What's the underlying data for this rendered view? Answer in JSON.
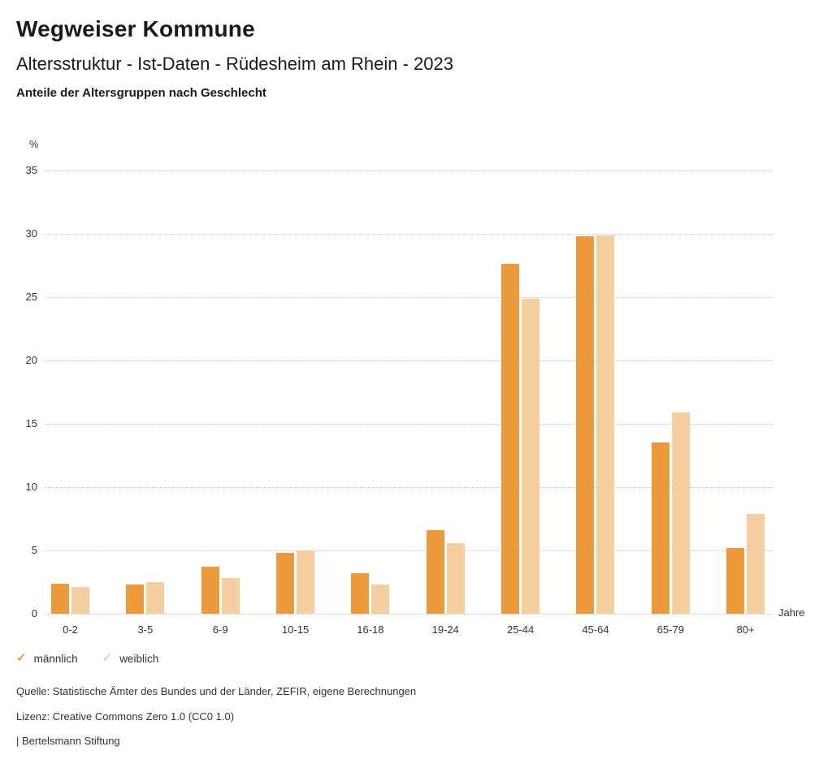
{
  "header": {
    "title": "Wegweiser Kommune",
    "subtitle": "Altersstruktur - Ist-Daten - Rüdesheim am Rhein - 2023",
    "caption": "Anteile der Altersgruppen nach Geschlecht"
  },
  "chart_data": {
    "type": "bar",
    "title": "Anteile der Altersgruppen nach Geschlecht",
    "categories": [
      "0-2",
      "3-5",
      "6-9",
      "10-15",
      "16-18",
      "19-24",
      "25-44",
      "45-64",
      "65-79",
      "80+"
    ],
    "series": [
      {
        "name": "männlich",
        "color": "#EC9A3C",
        "values": [
          2.4,
          2.3,
          3.7,
          4.8,
          3.2,
          6.6,
          27.6,
          29.8,
          13.5,
          5.2
        ]
      },
      {
        "name": "weiblich",
        "color": "#F6CFA0",
        "values": [
          2.1,
          2.5,
          2.8,
          5.0,
          2.3,
          5.6,
          24.9,
          29.9,
          15.9,
          7.9
        ]
      }
    ],
    "ylabel": "%",
    "xlabel": "Jahre",
    "ylim": [
      0,
      35
    ],
    "ytick_step": 5,
    "grid": "horizontal-dotted",
    "legend_position": "bottom-left"
  },
  "legend": {
    "items": [
      {
        "label": "männlich",
        "color": "#EC9A3C",
        "check": "✓"
      },
      {
        "label": "weiblich",
        "color": "#F6CFA0",
        "check": "✓"
      }
    ]
  },
  "footer": {
    "source": "Quelle: Statistische Ämter des Bundes und der Länder, ZEFIR, eigene Berechnungen",
    "license": "Lizenz: Creative Commons Zero 1.0 (CC0 1.0)",
    "brand": "| Bertelsmann Stiftung"
  }
}
